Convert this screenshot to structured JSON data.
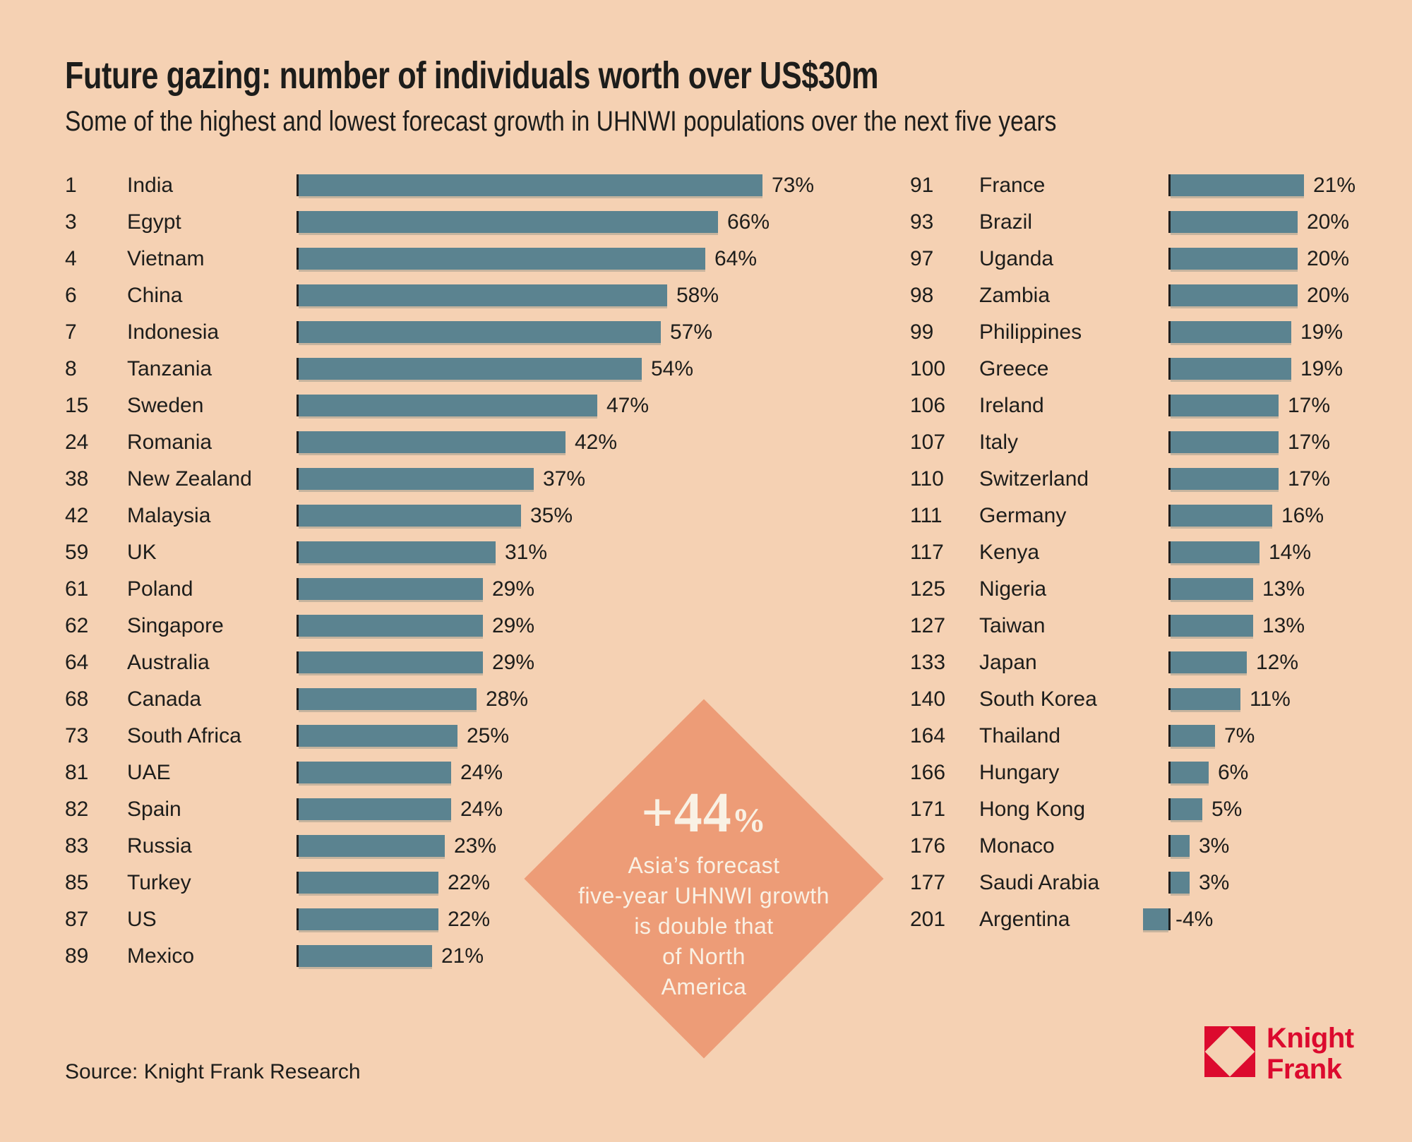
{
  "page": {
    "title": "Future gazing: number of individuals worth over US$30m",
    "subtitle": "Some of the highest and lowest forecast growth in UHNWI populations over the next five years",
    "source": "Source: Knight Frank Research"
  },
  "callout": {
    "value": "+44",
    "suffix": "%",
    "lines": [
      "Asia’s forecast",
      "five-year UHNWI growth",
      "is double that",
      "of North",
      "America"
    ]
  },
  "logo": {
    "line1": "Knight",
    "line2": "Frank"
  },
  "colors": {
    "background": "#F5D1B3",
    "bar": "#5B8390",
    "axis": "#1F1F1F",
    "text": "#1D1D1B",
    "diamond": "#ED9C77",
    "diamond_text": "#F9F1E4",
    "brand_red": "#DC0A2E"
  },
  "chart_data": {
    "type": "bar",
    "orientation": "horizontal",
    "unit": "%",
    "xlim": [
      -4,
      73
    ],
    "grid": false,
    "title": "Future gazing: number of individuals worth over US$30m",
    "groups": [
      {
        "name": "highest-forecast-growth",
        "rows": [
          {
            "rank": "1",
            "country": "India",
            "value": 73,
            "label": "73%"
          },
          {
            "rank": "3",
            "country": "Egypt",
            "value": 66,
            "label": "66%"
          },
          {
            "rank": "4",
            "country": "Vietnam",
            "value": 64,
            "label": "64%"
          },
          {
            "rank": "6",
            "country": "China",
            "value": 58,
            "label": "58%"
          },
          {
            "rank": "7",
            "country": "Indonesia",
            "value": 57,
            "label": "57%"
          },
          {
            "rank": "8",
            "country": "Tanzania",
            "value": 54,
            "label": "54%"
          },
          {
            "rank": "15",
            "country": "Sweden",
            "value": 47,
            "label": "47%"
          },
          {
            "rank": "24",
            "country": "Romania",
            "value": 42,
            "label": "42%"
          },
          {
            "rank": "38",
            "country": "New Zealand",
            "value": 37,
            "label": "37%"
          },
          {
            "rank": "42",
            "country": "Malaysia",
            "value": 35,
            "label": "35%"
          },
          {
            "rank": "59",
            "country": "UK",
            "value": 31,
            "label": "31%"
          },
          {
            "rank": "61",
            "country": "Poland",
            "value": 29,
            "label": "29%"
          },
          {
            "rank": "62",
            "country": "Singapore",
            "value": 29,
            "label": "29%"
          },
          {
            "rank": "64",
            "country": "Australia",
            "value": 29,
            "label": "29%"
          },
          {
            "rank": "68",
            "country": "Canada",
            "value": 28,
            "label": "28%"
          },
          {
            "rank": "73",
            "country": "South Africa",
            "value": 25,
            "label": "25%"
          },
          {
            "rank": "81",
            "country": "UAE",
            "value": 24,
            "label": "24%"
          },
          {
            "rank": "82",
            "country": "Spain",
            "value": 24,
            "label": "24%"
          },
          {
            "rank": "83",
            "country": "Russia",
            "value": 23,
            "label": "23%"
          },
          {
            "rank": "85",
            "country": "Turkey",
            "value": 22,
            "label": "22%"
          },
          {
            "rank": "87",
            "country": "US",
            "value": 22,
            "label": "22%"
          },
          {
            "rank": "89",
            "country": "Mexico",
            "value": 21,
            "label": "21%"
          }
        ]
      },
      {
        "name": "lowest-forecast-growth",
        "rows": [
          {
            "rank": "91",
            "country": "France",
            "value": 21,
            "label": "21%"
          },
          {
            "rank": "93",
            "country": "Brazil",
            "value": 20,
            "label": "20%"
          },
          {
            "rank": "97",
            "country": "Uganda",
            "value": 20,
            "label": "20%"
          },
          {
            "rank": "98",
            "country": "Zambia",
            "value": 20,
            "label": "20%"
          },
          {
            "rank": "99",
            "country": "Philippines",
            "value": 19,
            "label": "19%"
          },
          {
            "rank": "100",
            "country": "Greece",
            "value": 19,
            "label": "19%"
          },
          {
            "rank": "106",
            "country": "Ireland",
            "value": 17,
            "label": "17%"
          },
          {
            "rank": "107",
            "country": "Italy",
            "value": 17,
            "label": "17%"
          },
          {
            "rank": "110",
            "country": "Switzerland",
            "value": 17,
            "label": "17%"
          },
          {
            "rank": "111",
            "country": "Germany",
            "value": 16,
            "label": "16%"
          },
          {
            "rank": "117",
            "country": "Kenya",
            "value": 14,
            "label": "14%"
          },
          {
            "rank": "125",
            "country": "Nigeria",
            "value": 13,
            "label": "13%"
          },
          {
            "rank": "127",
            "country": "Taiwan",
            "value": 13,
            "label": "13%"
          },
          {
            "rank": "133",
            "country": "Japan",
            "value": 12,
            "label": "12%"
          },
          {
            "rank": "140",
            "country": "South Korea",
            "value": 11,
            "label": "11%"
          },
          {
            "rank": "164",
            "country": "Thailand",
            "value": 7,
            "label": "7%"
          },
          {
            "rank": "166",
            "country": "Hungary",
            "value": 6,
            "label": "6%"
          },
          {
            "rank": "171",
            "country": "Hong Kong",
            "value": 5,
            "label": "5%"
          },
          {
            "rank": "176",
            "country": "Monaco",
            "value": 3,
            "label": "3%"
          },
          {
            "rank": "177",
            "country": "Saudi Arabia",
            "value": 3,
            "label": "3%"
          },
          {
            "rank": "201",
            "country": "Argentina",
            "value": -4,
            "label": "-4%"
          }
        ]
      }
    ]
  }
}
